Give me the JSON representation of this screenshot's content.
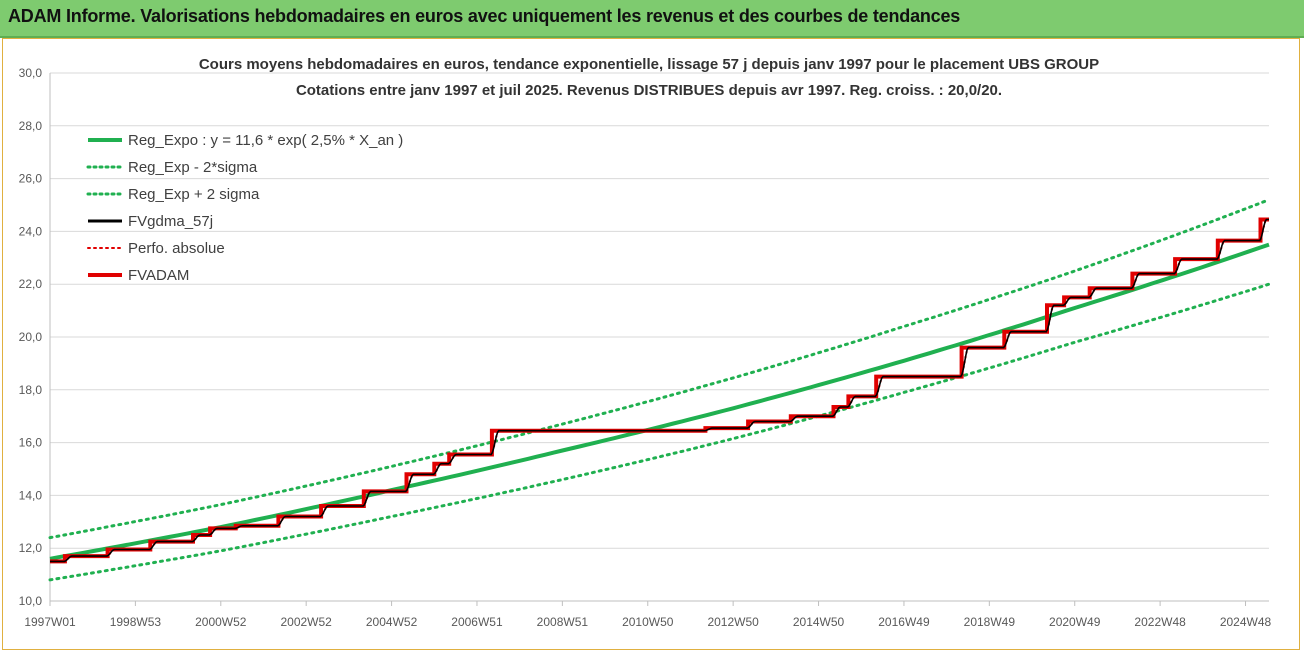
{
  "header": {
    "title": "ADAM Informe. Valorisations hebdomadaires en euros avec uniquement les revenus et des courbes de tendances"
  },
  "colors": {
    "header_bg": "#7ecb6f",
    "reg_expo": "#20b050",
    "sigma": "#20b050",
    "fvgdma": "#000000",
    "perfo": "#e00000",
    "fvadam": "#e00000"
  },
  "chart_data": {
    "type": "line",
    "title_line1": "Cours moyens hebdomadaires en euros, tendance exponentielle, lissage 57 j depuis janv 1997 pour le placement UBS GROUP",
    "title_line2": "Cotations entre janv 1997 et juil 2025. Revenus DISTRIBUES depuis avr 1997. Reg. croiss. : 20,0/20.",
    "ylim": [
      10,
      30
    ],
    "y_ticks": [
      "10,0",
      "12,0",
      "14,0",
      "16,0",
      "18,0",
      "20,0",
      "22,0",
      "24,0",
      "26,0",
      "28,0",
      "30,0"
    ],
    "x_range_years": [
      1997.0,
      2025.55
    ],
    "x_ticks": [
      {
        "label": "1997W01",
        "year": 1997.0
      },
      {
        "label": "1998W53",
        "year": 1999.0
      },
      {
        "label": "2000W52",
        "year": 2001.0
      },
      {
        "label": "2002W52",
        "year": 2003.0
      },
      {
        "label": "2004W52",
        "year": 2005.0
      },
      {
        "label": "2006W51",
        "year": 2007.0
      },
      {
        "label": "2008W51",
        "year": 2009.0
      },
      {
        "label": "2010W50",
        "year": 2011.0
      },
      {
        "label": "2012W50",
        "year": 2013.0
      },
      {
        "label": "2014W50",
        "year": 2015.0
      },
      {
        "label": "2016W49",
        "year": 2017.0
      },
      {
        "label": "2018W49",
        "year": 2019.0
      },
      {
        "label": "2020W49",
        "year": 2021.0
      },
      {
        "label": "2022W48",
        "year": 2023.0
      },
      {
        "label": "2024W48",
        "year": 2025.0
      }
    ],
    "legend": [
      {
        "key": "reg_expo",
        "label": "Reg_Expo : y = 11,6 * exp( 2,5% *  X_an )",
        "style": "solid-thick",
        "color": "#20b050"
      },
      {
        "key": "minus2sigma",
        "label": "Reg_Exp - 2*sigma",
        "style": "dotted",
        "color": "#20b050"
      },
      {
        "key": "plus2sigma",
        "label": "Reg_Exp + 2 sigma",
        "style": "dotted",
        "color": "#20b050"
      },
      {
        "key": "fvgdma",
        "label": "FVgdma_57j",
        "style": "solid",
        "color": "#000000"
      },
      {
        "key": "perfo",
        "label": "Perfo. absolue",
        "style": "dotted",
        "color": "#e00000"
      },
      {
        "key": "fvadam",
        "label": "FVADAM",
        "style": "solid-thick",
        "color": "#e00000"
      }
    ],
    "legend_placement": "top-left",
    "grid": "horizontal",
    "series": [
      {
        "key": "reg_expo",
        "x": [
          1997.0,
          2001.0,
          2005.0,
          2009.0,
          2013.0,
          2017.0,
          2021.0,
          2025.55
        ],
        "y": [
          11.6,
          12.8,
          14.2,
          15.7,
          17.3,
          19.1,
          21.1,
          23.5
        ]
      },
      {
        "key": "plus2sigma",
        "x": [
          1997.0,
          2001.0,
          2005.0,
          2009.0,
          2013.0,
          2017.0,
          2021.0,
          2025.55
        ],
        "y": [
          12.4,
          13.65,
          15.1,
          16.7,
          18.45,
          20.4,
          22.5,
          25.2
        ]
      },
      {
        "key": "minus2sigma",
        "x": [
          1997.0,
          2001.0,
          2005.0,
          2009.0,
          2013.0,
          2017.0,
          2021.0,
          2025.55
        ],
        "y": [
          10.8,
          11.9,
          13.2,
          14.6,
          16.15,
          17.9,
          19.8,
          22.0
        ]
      },
      {
        "key": "fvadam",
        "steps": [
          {
            "x": 1997.0,
            "y": 11.5
          },
          {
            "x": 1997.35,
            "y": 11.7
          },
          {
            "x": 1998.35,
            "y": 11.95
          },
          {
            "x": 1999.35,
            "y": 12.25
          },
          {
            "x": 2000.35,
            "y": 12.5
          },
          {
            "x": 2000.75,
            "y": 12.75
          },
          {
            "x": 2001.35,
            "y": 12.85
          },
          {
            "x": 2002.35,
            "y": 13.2
          },
          {
            "x": 2003.35,
            "y": 13.6
          },
          {
            "x": 2004.35,
            "y": 14.15
          },
          {
            "x": 2005.35,
            "y": 14.8
          },
          {
            "x": 2006.0,
            "y": 15.2
          },
          {
            "x": 2006.35,
            "y": 15.55
          },
          {
            "x": 2007.35,
            "y": 16.45
          },
          {
            "x": 2012.35,
            "y": 16.55
          },
          {
            "x": 2013.35,
            "y": 16.8
          },
          {
            "x": 2014.35,
            "y": 17.0
          },
          {
            "x": 2015.35,
            "y": 17.35
          },
          {
            "x": 2015.7,
            "y": 17.75
          },
          {
            "x": 2016.35,
            "y": 18.5
          },
          {
            "x": 2018.35,
            "y": 19.6
          },
          {
            "x": 2019.35,
            "y": 20.2
          },
          {
            "x": 2020.35,
            "y": 21.2
          },
          {
            "x": 2020.75,
            "y": 21.5
          },
          {
            "x": 2021.35,
            "y": 21.85
          },
          {
            "x": 2022.35,
            "y": 22.4
          },
          {
            "x": 2023.35,
            "y": 22.95
          },
          {
            "x": 2024.35,
            "y": 23.65
          },
          {
            "x": 2025.35,
            "y": 24.45
          }
        ],
        "end_x": 2025.55
      }
    ]
  }
}
